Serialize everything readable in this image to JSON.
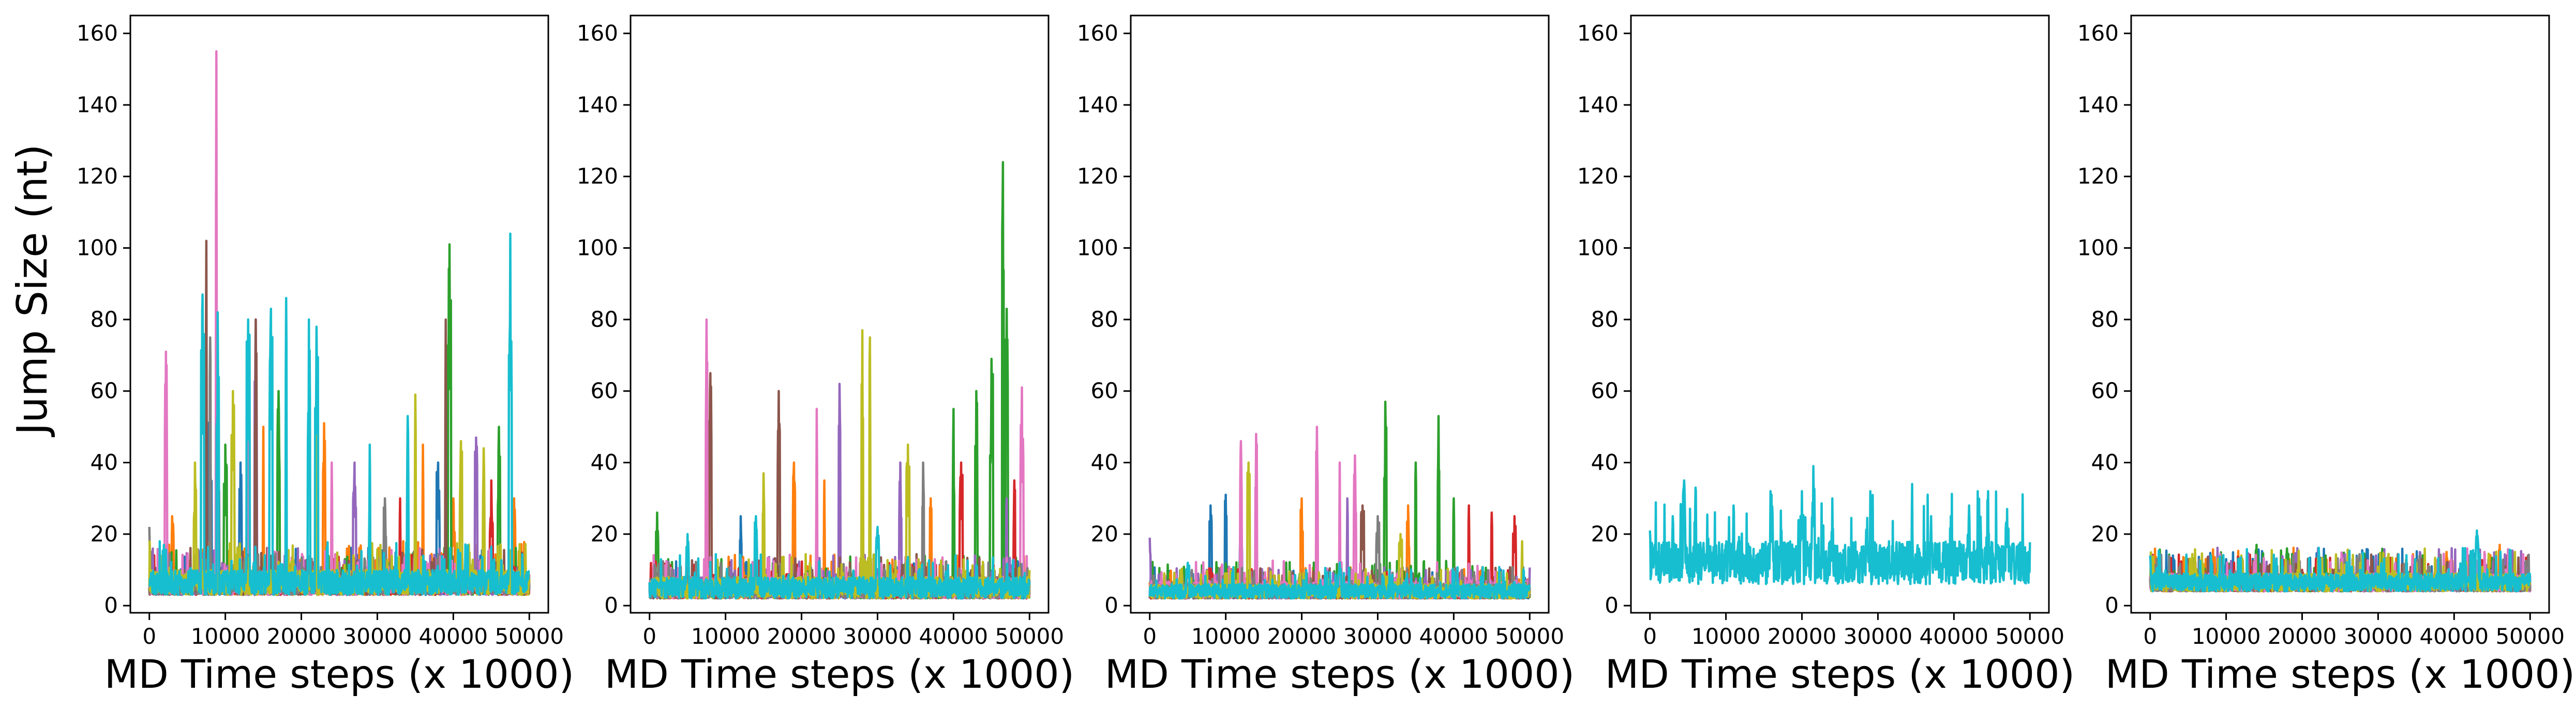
{
  "figure": {
    "ylabel": "Jump Size (nt)"
  },
  "chart_data": [
    {
      "type": "line",
      "title": "",
      "xlabel": "MD Time steps (x 1000)",
      "ylabel": "Jump Size (nt)",
      "xlim": [
        -2500,
        52500
      ],
      "ylim": [
        -2,
        165
      ],
      "xticks": [
        0,
        10000,
        20000,
        30000,
        40000,
        50000
      ],
      "yticks": [
        0,
        20,
        40,
        60,
        80,
        100,
        120,
        140,
        160
      ],
      "grid": false,
      "series": [
        {
          "color": "#1f77b4",
          "base": [
            3,
            9
          ],
          "peaks": [
            [
              8000,
              55
            ],
            [
              12000,
              40
            ],
            [
              22000,
              45
            ],
            [
              38000,
              40
            ]
          ]
        },
        {
          "color": "#ff7f0e",
          "base": [
            3,
            10
          ],
          "peaks": [
            [
              3000,
              25
            ],
            [
              15000,
              50
            ],
            [
              23000,
              51
            ],
            [
              36000,
              45
            ],
            [
              40000,
              30
            ],
            [
              48000,
              30
            ]
          ]
        },
        {
          "color": "#2ca02c",
          "base": [
            3,
            9
          ],
          "peaks": [
            [
              10000,
              45
            ],
            [
              17000,
              60
            ],
            [
              39500,
              101
            ],
            [
              46000,
              50
            ]
          ]
        },
        {
          "color": "#d62728",
          "base": [
            3,
            8
          ],
          "peaks": [
            [
              9000,
              40
            ],
            [
              33000,
              30
            ],
            [
              45000,
              35
            ]
          ]
        },
        {
          "color": "#9467bd",
          "base": [
            3,
            9
          ],
          "peaks": [
            [
              14000,
              80
            ],
            [
              27000,
              40
            ],
            [
              43000,
              47
            ]
          ]
        },
        {
          "color": "#8c564b",
          "base": [
            3,
            9
          ],
          "peaks": [
            [
              7500,
              102
            ],
            [
              14000,
              80
            ],
            [
              39000,
              80
            ]
          ]
        },
        {
          "color": "#e377c2",
          "base": [
            3,
            9
          ],
          "peaks": [
            [
              2200,
              71
            ],
            [
              8800,
              155
            ],
            [
              13000,
              68
            ],
            [
              24000,
              40
            ]
          ]
        },
        {
          "color": "#7f7f7f",
          "base": [
            3,
            9
          ],
          "peaks": [
            [
              0,
              22
            ],
            [
              8000,
              75
            ],
            [
              31000,
              30
            ]
          ]
        },
        {
          "color": "#bcbd22",
          "base": [
            3,
            10
          ],
          "peaks": [
            [
              6000,
              40
            ],
            [
              11000,
              60
            ],
            [
              22000,
              50
            ],
            [
              35000,
              59
            ],
            [
              41000,
              46
            ],
            [
              44000,
              44
            ]
          ]
        },
        {
          "color": "#17becf",
          "base": [
            3,
            10
          ],
          "peaks": [
            [
              7000,
              87
            ],
            [
              9000,
              82
            ],
            [
              13000,
              80
            ],
            [
              16000,
              83
            ],
            [
              18000,
              86
            ],
            [
              21000,
              80
            ],
            [
              22000,
              78
            ],
            [
              29000,
              45
            ],
            [
              34000,
              53
            ],
            [
              47500,
              104
            ]
          ]
        }
      ]
    },
    {
      "type": "line",
      "title": "",
      "xlabel": "MD Time steps (x 1000)",
      "ylabel": "",
      "xlim": [
        -2500,
        52500
      ],
      "ylim": [
        -2,
        165
      ],
      "xticks": [
        0,
        10000,
        20000,
        30000,
        40000,
        50000
      ],
      "yticks": [
        0,
        20,
        40,
        60,
        80,
        100,
        120,
        140,
        160
      ],
      "grid": false,
      "series": [
        {
          "color": "#1f77b4",
          "base": [
            2,
            7
          ],
          "peaks": [
            [
              12000,
              25
            ],
            [
              19000,
              25
            ]
          ]
        },
        {
          "color": "#ff7f0e",
          "base": [
            2,
            8
          ],
          "peaks": [
            [
              19000,
              40
            ],
            [
              23000,
              35
            ],
            [
              37000,
              30
            ]
          ]
        },
        {
          "color": "#2ca02c",
          "base": [
            2,
            8
          ],
          "peaks": [
            [
              1000,
              26
            ],
            [
              40000,
              55
            ],
            [
              43000,
              60
            ],
            [
              45000,
              69
            ],
            [
              46500,
              124
            ],
            [
              47000,
              83
            ]
          ]
        },
        {
          "color": "#d62728",
          "base": [
            2,
            7
          ],
          "peaks": [
            [
              41000,
              40
            ],
            [
              48000,
              35
            ]
          ]
        },
        {
          "color": "#9467bd",
          "base": [
            2,
            8
          ],
          "peaks": [
            [
              25000,
              62
            ],
            [
              33000,
              40
            ],
            [
              47000,
              30
            ]
          ]
        },
        {
          "color": "#8c564b",
          "base": [
            2,
            8
          ],
          "peaks": [
            [
              8000,
              65
            ],
            [
              17000,
              60
            ]
          ]
        },
        {
          "color": "#e377c2",
          "base": [
            2,
            8
          ],
          "peaks": [
            [
              7500,
              80
            ],
            [
              22000,
              55
            ],
            [
              49000,
              61
            ]
          ]
        },
        {
          "color": "#7f7f7f",
          "base": [
            2,
            7
          ],
          "peaks": [
            [
              36000,
              40
            ]
          ]
        },
        {
          "color": "#bcbd22",
          "base": [
            2,
            8
          ],
          "peaks": [
            [
              15000,
              37
            ],
            [
              28000,
              77
            ],
            [
              29000,
              75
            ],
            [
              34000,
              45
            ]
          ]
        },
        {
          "color": "#17becf",
          "base": [
            2,
            8
          ],
          "peaks": [
            [
              5000,
              20
            ],
            [
              14000,
              25
            ],
            [
              30000,
              22
            ]
          ]
        }
      ]
    },
    {
      "type": "line",
      "title": "",
      "xlabel": "MD Time steps (x 1000)",
      "ylabel": "",
      "xlim": [
        -2500,
        52500
      ],
      "ylim": [
        -2,
        165
      ],
      "xticks": [
        0,
        10000,
        20000,
        30000,
        40000,
        50000
      ],
      "yticks": [
        0,
        20,
        40,
        60,
        80,
        100,
        120,
        140,
        160
      ],
      "grid": false,
      "series": [
        {
          "color": "#1f77b4",
          "base": [
            2,
            6
          ],
          "peaks": [
            [
              8000,
              28
            ],
            [
              10000,
              31
            ],
            [
              12000,
              26
            ]
          ]
        },
        {
          "color": "#ff7f0e",
          "base": [
            2,
            6
          ],
          "peaks": [
            [
              20000,
              30
            ],
            [
              34000,
              28
            ]
          ]
        },
        {
          "color": "#2ca02c",
          "base": [
            2,
            7
          ],
          "peaks": [
            [
              31000,
              57
            ],
            [
              35000,
              40
            ],
            [
              38000,
              53
            ],
            [
              40000,
              30
            ]
          ]
        },
        {
          "color": "#d62728",
          "base": [
            2,
            6
          ],
          "peaks": [
            [
              42000,
              28
            ],
            [
              45000,
              26
            ],
            [
              48000,
              25
            ]
          ]
        },
        {
          "color": "#9467bd",
          "base": [
            2,
            6
          ],
          "peaks": [
            [
              0,
              19
            ],
            [
              26000,
              30
            ]
          ]
        },
        {
          "color": "#8c564b",
          "base": [
            2,
            6
          ],
          "peaks": [
            [
              14000,
              42
            ],
            [
              28000,
              28
            ]
          ]
        },
        {
          "color": "#e377c2",
          "base": [
            2,
            7
          ],
          "peaks": [
            [
              12000,
              46
            ],
            [
              14000,
              48
            ],
            [
              22000,
              50
            ],
            [
              25000,
              40
            ],
            [
              27000,
              42
            ]
          ]
        },
        {
          "color": "#7f7f7f",
          "base": [
            2,
            6
          ],
          "peaks": [
            [
              30000,
              25
            ]
          ]
        },
        {
          "color": "#bcbd22",
          "base": [
            2,
            6
          ],
          "peaks": [
            [
              13000,
              40
            ],
            [
              33000,
              20
            ],
            [
              49000,
              18
            ]
          ]
        },
        {
          "color": "#17becf",
          "base": [
            2,
            6
          ],
          "peaks": [
            [
              5000,
              12
            ],
            [
              25000,
              12
            ]
          ]
        }
      ]
    },
    {
      "type": "line",
      "title": "",
      "xlabel": "MD Time steps (x 1000)",
      "ylabel": "",
      "xlim": [
        -2500,
        52500
      ],
      "ylim": [
        -2,
        165
      ],
      "xticks": [
        0,
        10000,
        20000,
        30000,
        40000,
        50000
      ],
      "yticks": [
        0,
        20,
        40,
        60,
        80,
        100,
        120,
        140,
        160
      ],
      "grid": false,
      "series": [
        {
          "color": "#17becf",
          "base": [
            6,
            18
          ],
          "peaks": [
            [
              0,
              21
            ],
            [
              3000,
              25
            ],
            [
              4500,
              35
            ],
            [
              6000,
              33
            ],
            [
              11000,
              28
            ],
            [
              16000,
              31
            ],
            [
              20000,
              32
            ],
            [
              21500,
              39
            ],
            [
              24000,
              30
            ],
            [
              29000,
              32
            ],
            [
              34500,
              34
            ],
            [
              37000,
              25
            ],
            [
              42000,
              28
            ],
            [
              44500,
              32
            ],
            [
              47000,
              27
            ]
          ]
        }
      ]
    },
    {
      "type": "line",
      "title": "",
      "xlabel": "MD Time steps (x 1000)",
      "ylabel": "",
      "xlim": [
        -2500,
        52500
      ],
      "ylim": [
        -2,
        165
      ],
      "xticks": [
        0,
        10000,
        20000,
        30000,
        40000,
        50000
      ],
      "yticks": [
        0,
        20,
        40,
        60,
        80,
        100,
        120,
        140,
        160
      ],
      "grid": false,
      "series": [
        {
          "color": "#1f77b4",
          "base": [
            4,
            9
          ],
          "peaks": [
            [
              3000,
              14
            ],
            [
              10000,
              13
            ]
          ]
        },
        {
          "color": "#ff7f0e",
          "base": [
            4,
            9
          ],
          "peaks": [
            [
              39000,
              15
            ],
            [
              46000,
              17
            ]
          ]
        },
        {
          "color": "#2ca02c",
          "base": [
            4,
            9
          ],
          "peaks": [
            [
              14000,
              17
            ],
            [
              18000,
              16
            ]
          ]
        },
        {
          "color": "#d62728",
          "base": [
            4,
            8
          ],
          "peaks": [
            [
              0,
              14
            ],
            [
              20000,
              10
            ]
          ]
        },
        {
          "color": "#9467bd",
          "base": [
            4,
            9
          ],
          "peaks": [
            [
              42000,
              14
            ]
          ]
        },
        {
          "color": "#8c564b",
          "base": [
            4,
            8
          ],
          "peaks": [
            [
              5000,
              13
            ],
            [
              30000,
              10
            ]
          ]
        },
        {
          "color": "#e377c2",
          "base": [
            4,
            9
          ],
          "peaks": [
            [
              44000,
              15
            ]
          ]
        },
        {
          "color": "#7f7f7f",
          "base": [
            4,
            8
          ],
          "peaks": [
            [
              25000,
              10
            ]
          ]
        },
        {
          "color": "#bcbd22",
          "base": [
            4,
            9
          ],
          "peaks": [
            [
              12000,
              14
            ],
            [
              35000,
              12
            ],
            [
              48000,
              15
            ]
          ]
        },
        {
          "color": "#17becf",
          "base": [
            4,
            9
          ],
          "peaks": [
            [
              0,
              14
            ],
            [
              8000,
              14
            ],
            [
              43000,
              21
            ]
          ]
        }
      ]
    }
  ]
}
